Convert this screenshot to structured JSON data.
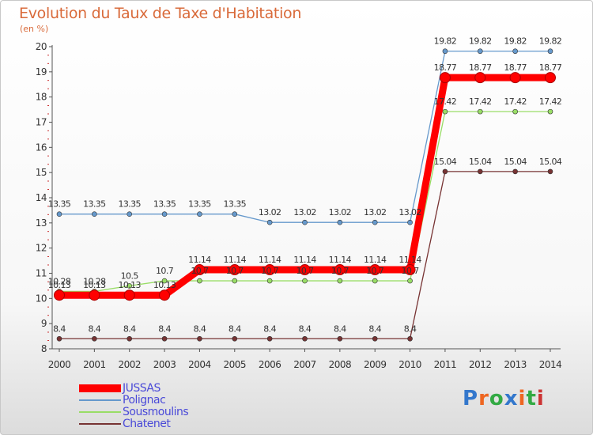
{
  "title": "Evolution du Taux de Taxe d'Habitation",
  "unit": "(en %)",
  "brand": "Proxiti",
  "chart_data": {
    "type": "line",
    "x": [
      "2000",
      "2001",
      "2002",
      "2003",
      "2004",
      "2005",
      "2006",
      "2007",
      "2008",
      "2009",
      "2010",
      "2011",
      "2012",
      "2013",
      "2014"
    ],
    "yticks": [
      8,
      9,
      10,
      11,
      12,
      13,
      14,
      15,
      16,
      17,
      18,
      19,
      20
    ],
    "ylim": [
      8,
      20
    ],
    "legend_position": "bottom-left",
    "grid": false,
    "series": [
      {
        "name": "JUSSAS",
        "color": "#ff0000",
        "values": [
          10.13,
          10.13,
          10.13,
          10.13,
          11.14,
          11.14,
          11.14,
          11.14,
          11.14,
          11.14,
          11.14,
          18.77,
          18.77,
          18.77,
          18.77
        ],
        "labels": [
          "10.13",
          "10.13",
          "10.13",
          "10.13",
          "11.14",
          "11.14",
          "11.14",
          "11.14",
          "11.14",
          "11.14",
          "11.14",
          "18.77",
          "18.77",
          "18.77",
          "18.77"
        ]
      },
      {
        "name": "Polignac",
        "color": "#6699cc",
        "values": [
          13.35,
          13.35,
          13.35,
          13.35,
          13.35,
          13.35,
          13.02,
          13.02,
          13.02,
          13.02,
          13.02,
          19.82,
          19.82,
          19.82,
          19.82
        ],
        "labels": [
          "13.35",
          "13.35",
          "13.35",
          "13.35",
          "13.35",
          "13.35",
          "13.02",
          "13.02",
          "13.02",
          "13.02",
          "13.02",
          "19.82",
          "19.82",
          "19.82",
          "19.82"
        ]
      },
      {
        "name": "Sousmoulins",
        "color": "#99dd66",
        "values": [
          10.28,
          10.28,
          10.5,
          10.7,
          10.7,
          10.7,
          10.7,
          10.7,
          10.7,
          10.7,
          10.7,
          17.42,
          17.42,
          17.42,
          17.42
        ],
        "labels": [
          "10.28",
          "10.28",
          "10.5",
          "10.7",
          "10.7",
          "10.7",
          "10.7",
          "10.7",
          "10.7",
          "10.7",
          "10.7",
          "17.42",
          "17.42",
          "17.42",
          "17.42"
        ]
      },
      {
        "name": "Chatenet",
        "color": "#773333",
        "values": [
          8.4,
          8.4,
          8.4,
          8.4,
          8.4,
          8.4,
          8.4,
          8.4,
          8.4,
          8.4,
          8.4,
          15.04,
          15.04,
          15.04,
          15.04
        ],
        "labels": [
          "8.4",
          "8.4",
          "8.4",
          "8.4",
          "8.4",
          "8.4",
          "8.4",
          "8.4",
          "8.4",
          "8.4",
          "8.4",
          "15.04",
          "15.04",
          "15.04",
          "15.04"
        ]
      }
    ]
  }
}
